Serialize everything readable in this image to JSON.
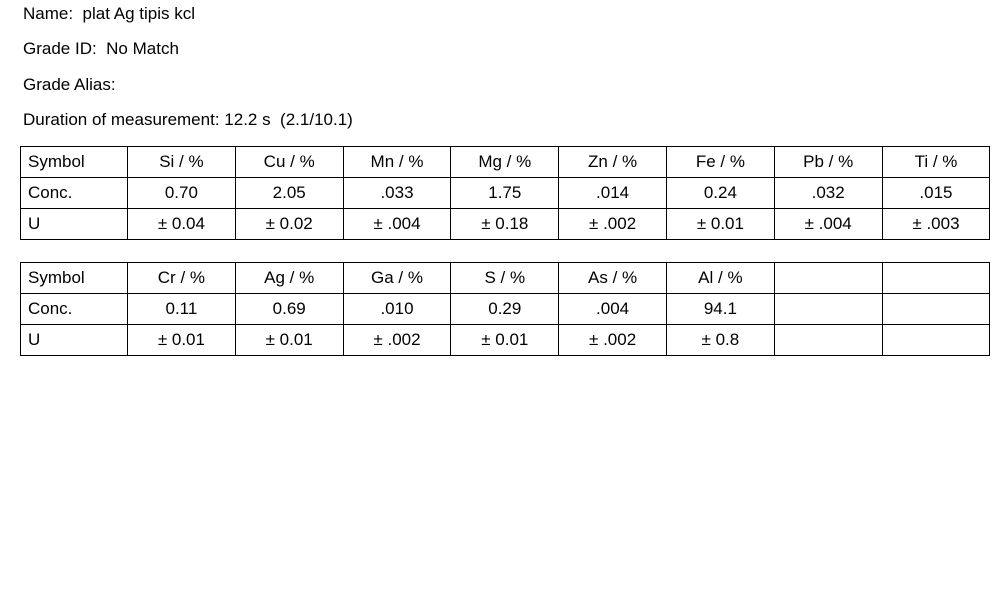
{
  "header": {
    "name_label": "Name:",
    "name_value": "plat Ag tipis kcl",
    "grade_id_label": "Grade ID:",
    "grade_id_value": "No Match",
    "grade_alias_label": "Grade Alias:",
    "grade_alias_value": "",
    "duration_label": "Duration of measurement:",
    "duration_value": "12.2 s",
    "duration_detail": "(2.1/10.1)"
  },
  "tables": [
    {
      "row_labels": [
        "Symbol",
        "Conc.",
        "U"
      ],
      "columns": [
        {
          "symbol": "Si / %",
          "conc": "0.70",
          "u": "± 0.04"
        },
        {
          "symbol": "Cu / %",
          "conc": "2.05",
          "u": "± 0.02"
        },
        {
          "symbol": "Mn / %",
          "conc": ".033",
          "u": "± .004"
        },
        {
          "symbol": "Mg / %",
          "conc": "1.75",
          "u": "± 0.18"
        },
        {
          "symbol": "Zn / %",
          "conc": ".014",
          "u": "± .002"
        },
        {
          "symbol": "Fe / %",
          "conc": "0.24",
          "u": "± 0.01"
        },
        {
          "symbol": "Pb / %",
          "conc": ".032",
          "u": "± .004"
        },
        {
          "symbol": "Ti / %",
          "conc": ".015",
          "u": "± .003"
        }
      ]
    },
    {
      "row_labels": [
        "Symbol",
        "Conc.",
        "U"
      ],
      "columns": [
        {
          "symbol": "Cr / %",
          "conc": "0.11",
          "u": "± 0.01"
        },
        {
          "symbol": "Ag / %",
          "conc": "0.69",
          "u": "± 0.01"
        },
        {
          "symbol": "Ga / %",
          "conc": ".010",
          "u": "± .002"
        },
        {
          "symbol": "S / %",
          "conc": "0.29",
          "u": "± 0.01"
        },
        {
          "symbol": "As / %",
          "conc": ".004",
          "u": "± .002"
        },
        {
          "symbol": "Al / %",
          "conc": "94.1",
          "u": "± 0.8"
        },
        {
          "symbol": "",
          "conc": "",
          "u": ""
        },
        {
          "symbol": "",
          "conc": "",
          "u": ""
        }
      ]
    }
  ]
}
